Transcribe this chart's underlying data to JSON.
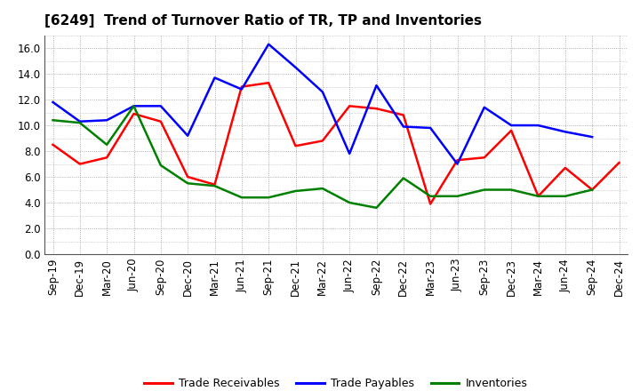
{
  "title": "[6249]  Trend of Turnover Ratio of TR, TP and Inventories",
  "x_labels": [
    "Sep-19",
    "Dec-19",
    "Mar-20",
    "Jun-20",
    "Sep-20",
    "Dec-20",
    "Mar-21",
    "Jun-21",
    "Sep-21",
    "Dec-21",
    "Mar-22",
    "Jun-22",
    "Sep-22",
    "Dec-22",
    "Mar-23",
    "Jun-23",
    "Sep-23",
    "Dec-23",
    "Mar-24",
    "Jun-24",
    "Sep-24",
    "Dec-24"
  ],
  "trade_receivables": [
    8.5,
    7.0,
    7.5,
    10.9,
    10.3,
    6.0,
    5.4,
    13.0,
    13.3,
    8.4,
    8.8,
    11.5,
    11.3,
    10.8,
    3.9,
    7.3,
    7.5,
    9.6,
    4.5,
    6.7,
    5.0,
    7.1
  ],
  "trade_payables": [
    11.8,
    10.3,
    10.4,
    11.5,
    11.5,
    9.2,
    13.7,
    12.8,
    16.3,
    14.5,
    12.6,
    7.8,
    13.1,
    9.9,
    9.8,
    7.0,
    11.4,
    10.0,
    10.0,
    9.5,
    9.1,
    null
  ],
  "inventories": [
    10.4,
    10.2,
    8.5,
    11.5,
    6.9,
    5.5,
    5.3,
    4.4,
    4.4,
    4.9,
    5.1,
    4.0,
    3.6,
    5.9,
    4.5,
    4.5,
    5.0,
    5.0,
    4.5,
    4.5,
    5.0,
    null
  ],
  "ylim": [
    0.0,
    17.0
  ],
  "yticks": [
    0.0,
    2.0,
    4.0,
    6.0,
    8.0,
    10.0,
    12.0,
    14.0,
    16.0
  ],
  "color_tr": "#FF0000",
  "color_tp": "#0000FF",
  "color_inv": "#008000",
  "legend_labels": [
    "Trade Receivables",
    "Trade Payables",
    "Inventories"
  ],
  "title_fontsize": 11,
  "tick_fontsize": 8.5,
  "legend_fontsize": 9,
  "linewidth": 1.8
}
